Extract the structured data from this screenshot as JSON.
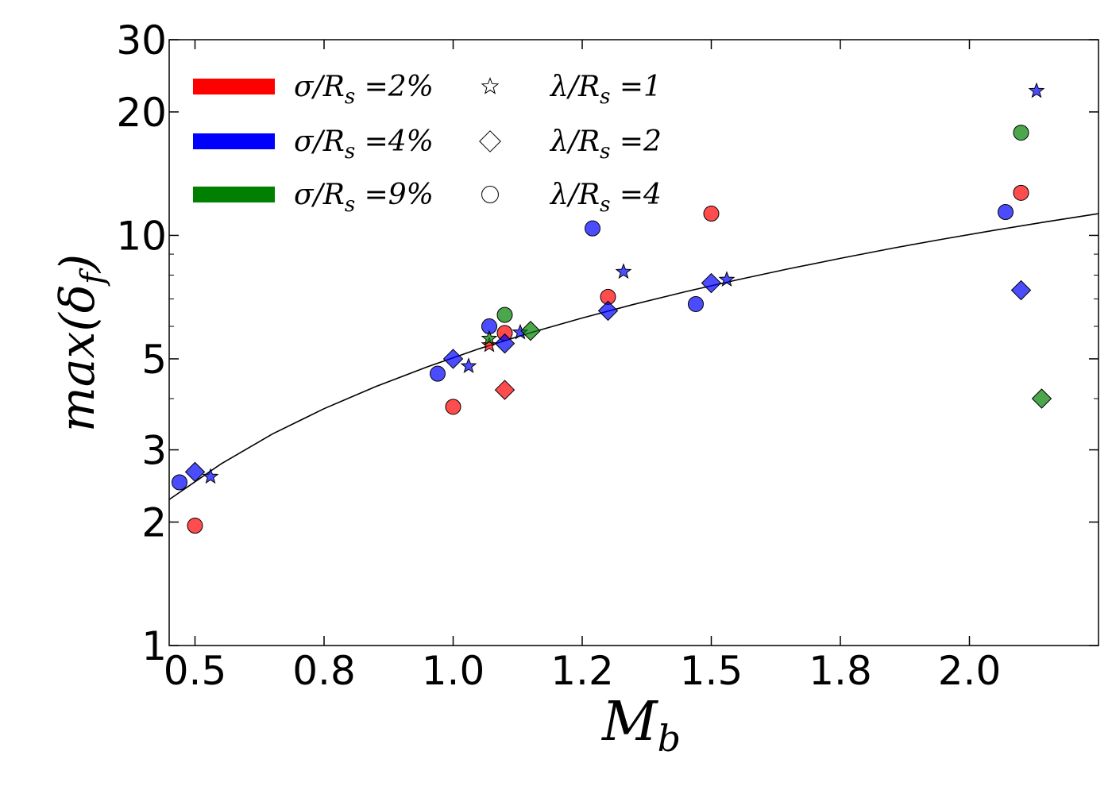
{
  "chart_data": {
    "type": "scatter",
    "title": "",
    "xlabel": "M_b",
    "ylabel": "max(δ_f)",
    "x_scale": "linear",
    "y_scale": "log",
    "xlim": [
      0.45,
      2.25
    ],
    "ylim": [
      1,
      30
    ],
    "grid": false,
    "legend_position": "top-left",
    "x_ticks": [
      {
        "value": 0.5,
        "label": "0.5"
      },
      {
        "value": 0.75,
        "label": "0.8"
      },
      {
        "value": 1.0,
        "label": "1.0"
      },
      {
        "value": 1.25,
        "label": "1.2"
      },
      {
        "value": 1.5,
        "label": "1.5"
      },
      {
        "value": 1.75,
        "label": "1.8"
      },
      {
        "value": 2.0,
        "label": "2.0"
      }
    ],
    "y_ticks": [
      {
        "value": 1,
        "label": "1"
      },
      {
        "value": 2,
        "label": "2"
      },
      {
        "value": 3,
        "label": "3"
      },
      {
        "value": 5,
        "label": "5"
      },
      {
        "value": 10,
        "label": "10"
      },
      {
        "value": 20,
        "label": "20"
      },
      {
        "value": 30,
        "label": "30"
      }
    ],
    "colors": {
      "sigma_2": "#ff0000",
      "sigma_4": "#0000ff",
      "sigma_9": "#008000"
    },
    "legend": {
      "colors": [
        {
          "key": "sigma_2",
          "label": "σ/R_s =2%"
        },
        {
          "key": "sigma_4",
          "label": "σ/R_s =4%"
        },
        {
          "key": "sigma_9",
          "label": "σ/R_s =9%"
        }
      ],
      "markers": [
        {
          "marker": "star",
          "label": "λ/R_s =1"
        },
        {
          "marker": "diamond",
          "label": "λ/R_s =2"
        },
        {
          "marker": "circle",
          "label": "λ/R_s =4"
        }
      ]
    },
    "fit_curve": {
      "description": "power-law fit",
      "x": [
        0.45,
        0.55,
        0.65,
        0.75,
        0.85,
        0.95,
        1.05,
        1.15,
        1.25,
        1.35,
        1.45,
        1.55,
        1.65,
        1.75,
        1.85,
        1.95,
        2.05,
        2.15,
        2.25
      ],
      "y": [
        2.27,
        2.77,
        3.28,
        3.78,
        4.28,
        4.78,
        5.29,
        5.79,
        6.29,
        6.79,
        7.29,
        7.79,
        8.29,
        8.79,
        9.3,
        9.8,
        10.3,
        10.8,
        11.3
      ]
    },
    "series": [
      {
        "sigma": "sigma_2",
        "marker": "circle",
        "points": [
          [
            0.5,
            1.96
          ],
          [
            1.0,
            3.82
          ],
          [
            1.1,
            5.78
          ],
          [
            1.3,
            7.08
          ],
          [
            1.5,
            11.3
          ],
          [
            2.1,
            12.7
          ]
        ]
      },
      {
        "sigma": "sigma_2",
        "marker": "diamond",
        "points": [
          [
            1.1,
            4.2
          ]
        ]
      },
      {
        "sigma": "sigma_2",
        "marker": "star",
        "points": [
          [
            1.07,
            5.4
          ]
        ]
      },
      {
        "sigma": "sigma_4",
        "marker": "circle",
        "points": [
          [
            0.47,
            2.5
          ],
          [
            0.97,
            4.6
          ],
          [
            1.07,
            6.0
          ],
          [
            1.27,
            10.4
          ],
          [
            1.47,
            6.8
          ],
          [
            2.07,
            11.4
          ]
        ]
      },
      {
        "sigma": "sigma_4",
        "marker": "diamond",
        "points": [
          [
            0.5,
            2.65
          ],
          [
            1.0,
            5.0
          ],
          [
            1.1,
            5.45
          ],
          [
            1.3,
            6.55
          ],
          [
            1.5,
            7.65
          ],
          [
            2.1,
            7.35
          ]
        ]
      },
      {
        "sigma": "sigma_4",
        "marker": "star",
        "points": [
          [
            0.53,
            2.58
          ],
          [
            1.03,
            4.8
          ],
          [
            1.13,
            5.8
          ],
          [
            1.33,
            8.15
          ],
          [
            1.53,
            7.8
          ],
          [
            2.13,
            22.5
          ]
        ]
      },
      {
        "sigma": "sigma_9",
        "marker": "circle",
        "points": [
          [
            1.1,
            6.4
          ],
          [
            2.1,
            17.8
          ]
        ]
      },
      {
        "sigma": "sigma_9",
        "marker": "diamond",
        "points": [
          [
            1.15,
            5.85
          ],
          [
            2.14,
            4.0
          ]
        ]
      },
      {
        "sigma": "sigma_9",
        "marker": "star",
        "points": [
          [
            1.07,
            5.6
          ]
        ]
      }
    ]
  }
}
